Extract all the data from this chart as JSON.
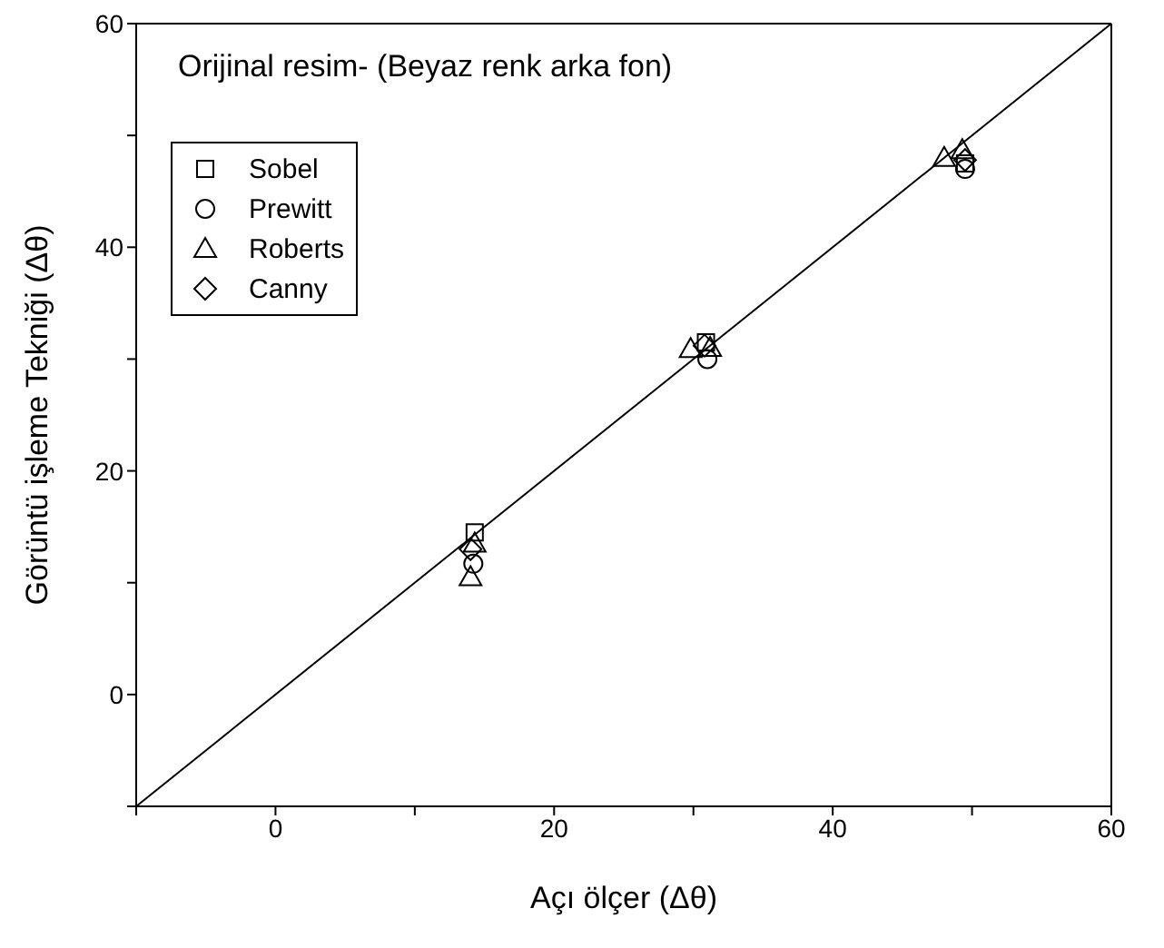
{
  "chart_data": {
    "type": "scatter",
    "title": "Orijinal resim- (Beyaz renk arka fon)",
    "xlabel": "Açı ölçer (Δθ)",
    "ylabel": "Görüntü işleme Tekniği (Δθ)",
    "xlim": [
      -10,
      60
    ],
    "ylim": [
      -10,
      60
    ],
    "xticks": [
      {
        "value": -10,
        "label": null
      },
      0,
      {
        "value": 10,
        "label": null
      },
      20,
      {
        "value": 30,
        "label": null
      },
      40,
      {
        "value": 50,
        "label": null
      },
      60
    ],
    "yticks": [
      {
        "value": -10,
        "label": null
      },
      0,
      {
        "value": 10,
        "label": null
      },
      20,
      {
        "value": 30,
        "label": null
      },
      40,
      {
        "value": 50,
        "label": null
      },
      60
    ],
    "legend": "top left",
    "series": [
      {
        "name": "Sobel",
        "color": "#000000",
        "marker": "square",
        "x": [
          14.3,
          30.9,
          49.5
        ],
        "values": [
          14.5,
          31.5,
          47.5
        ]
      },
      {
        "name": "Prewitt",
        "color": "#000000",
        "marker": "circle",
        "x": [
          14.2,
          31.0,
          49.5
        ],
        "values": [
          11.7,
          30.0,
          47.0
        ]
      },
      {
        "name": "Roberts",
        "color": "#000000",
        "marker": "triangle",
        "x": [
          14.0,
          14.3,
          29.8,
          31.2,
          48.0,
          49.3
        ],
        "values": [
          10.5,
          13.5,
          30.9,
          31.0,
          48.0,
          48.7
        ]
      },
      {
        "name": "Canny",
        "color": "#000000",
        "marker": "diamond",
        "x": [
          14.0,
          30.8,
          49.5
        ],
        "values": [
          13.0,
          31.2,
          47.8
        ]
      },
      {
        "type": "line",
        "color": "#000000",
        "marker": "none",
        "x": [
          -10,
          60
        ],
        "values": [
          -10,
          60
        ]
      }
    ]
  }
}
